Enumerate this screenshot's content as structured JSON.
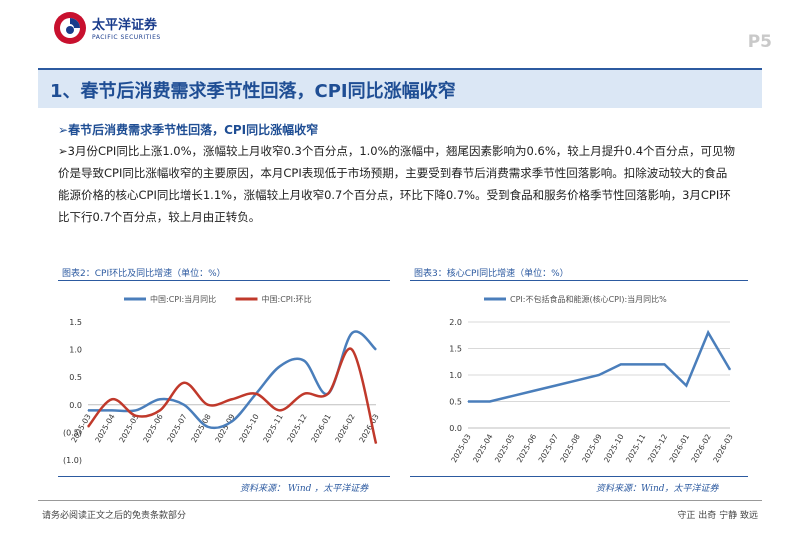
{
  "header": {
    "logo_name": "太平洋证券",
    "logo_en": "PACIFIC SECURITIES",
    "page_number": "P5"
  },
  "title": "1、春节后消费需求季节性回落，CPI同比涨幅收窄",
  "subheading": {
    "arrow": "➢",
    "text": "春节后消费需求季节性回落，CPI同比涨幅收窄"
  },
  "paragraph": {
    "arrow": "➢",
    "text": "3月份CPI同比上涨1.0%，涨幅较上月收窄0.3个百分点，1.0%的涨幅中，翘尾因素影响为0.6%，较上月提升0.4个百分点，可见物价是导致CPI同比涨幅收窄的主要原因，本月CPI表现低于市场预期，主要受到春节后消费需求季节性回落影响。扣除波动较大的食品能源价格的核心CPI同比增长1.1%，涨幅较上月收窄0.7个百分点，环比下降0.7%。受到食品和服务价格季节性回落影响，3月CPI环比下行0.7个百分点，较上月由正转负。"
  },
  "chart_data": [
    {
      "type": "line",
      "title": "图表2：CPI环比及同比增速（单位：%）",
      "source": "资料来源： Wind ，太平洋证券",
      "categories": [
        "2025-03",
        "2025-04",
        "2025-05",
        "2025-06",
        "2025-07",
        "2025-08",
        "2025-09",
        "2025-10",
        "2025-11",
        "2025-12",
        "2026-01",
        "2026-02",
        "2026-03"
      ],
      "ytick_labels": [
        "1.5",
        "1.0",
        "0.5",
        "0.0",
        "(0.5)",
        "(1.0)"
      ],
      "ytick_values": [
        1.5,
        1.0,
        0.5,
        0.0,
        -0.5,
        -1.0
      ],
      "ylim": [
        -1.0,
        1.5
      ],
      "legend_position": "top",
      "series": [
        {
          "name": "中国:CPI:当月同比",
          "color": "#4a7ebb",
          "values": [
            -0.1,
            -0.1,
            -0.1,
            0.1,
            0.0,
            -0.4,
            -0.3,
            0.2,
            0.7,
            0.8,
            0.2,
            1.3,
            1.0
          ]
        },
        {
          "name": "中国:CPI:环比",
          "color": "#c0392b",
          "values": [
            -0.4,
            0.1,
            -0.2,
            -0.1,
            0.4,
            0.0,
            0.1,
            0.2,
            -0.1,
            0.2,
            0.2,
            1.0,
            -0.7
          ]
        }
      ]
    },
    {
      "type": "line",
      "title": "图表3：核心CPI同比增速（单位：%）",
      "source": "资料来源：Wind，太平洋证券",
      "categories": [
        "2025-03",
        "2025-04",
        "2025-05",
        "2025-06",
        "2025-07",
        "2025-08",
        "2025-09",
        "2025-10",
        "2025-11",
        "2025-12",
        "2026-01",
        "2026-02",
        "2026-03"
      ],
      "ytick_labels": [
        "2.0",
        "1.5",
        "1.0",
        "0.5",
        "0.0"
      ],
      "ytick_values": [
        2.0,
        1.5,
        1.0,
        0.5,
        0.0
      ],
      "ylim": [
        0.0,
        2.0
      ],
      "legend_position": "top",
      "series": [
        {
          "name": "CPI:不包括食品和能源(核心CPI):当月同比%",
          "color": "#4a7ebb",
          "values": [
            0.5,
            0.5,
            0.6,
            0.7,
            0.8,
            0.9,
            1.0,
            1.2,
            1.2,
            1.2,
            0.8,
            1.8,
            1.1
          ]
        }
      ]
    }
  ],
  "footer": {
    "left": "请务必阅读正文之后的免责条款部分",
    "right": "守正  出奇  宁静  致远"
  }
}
